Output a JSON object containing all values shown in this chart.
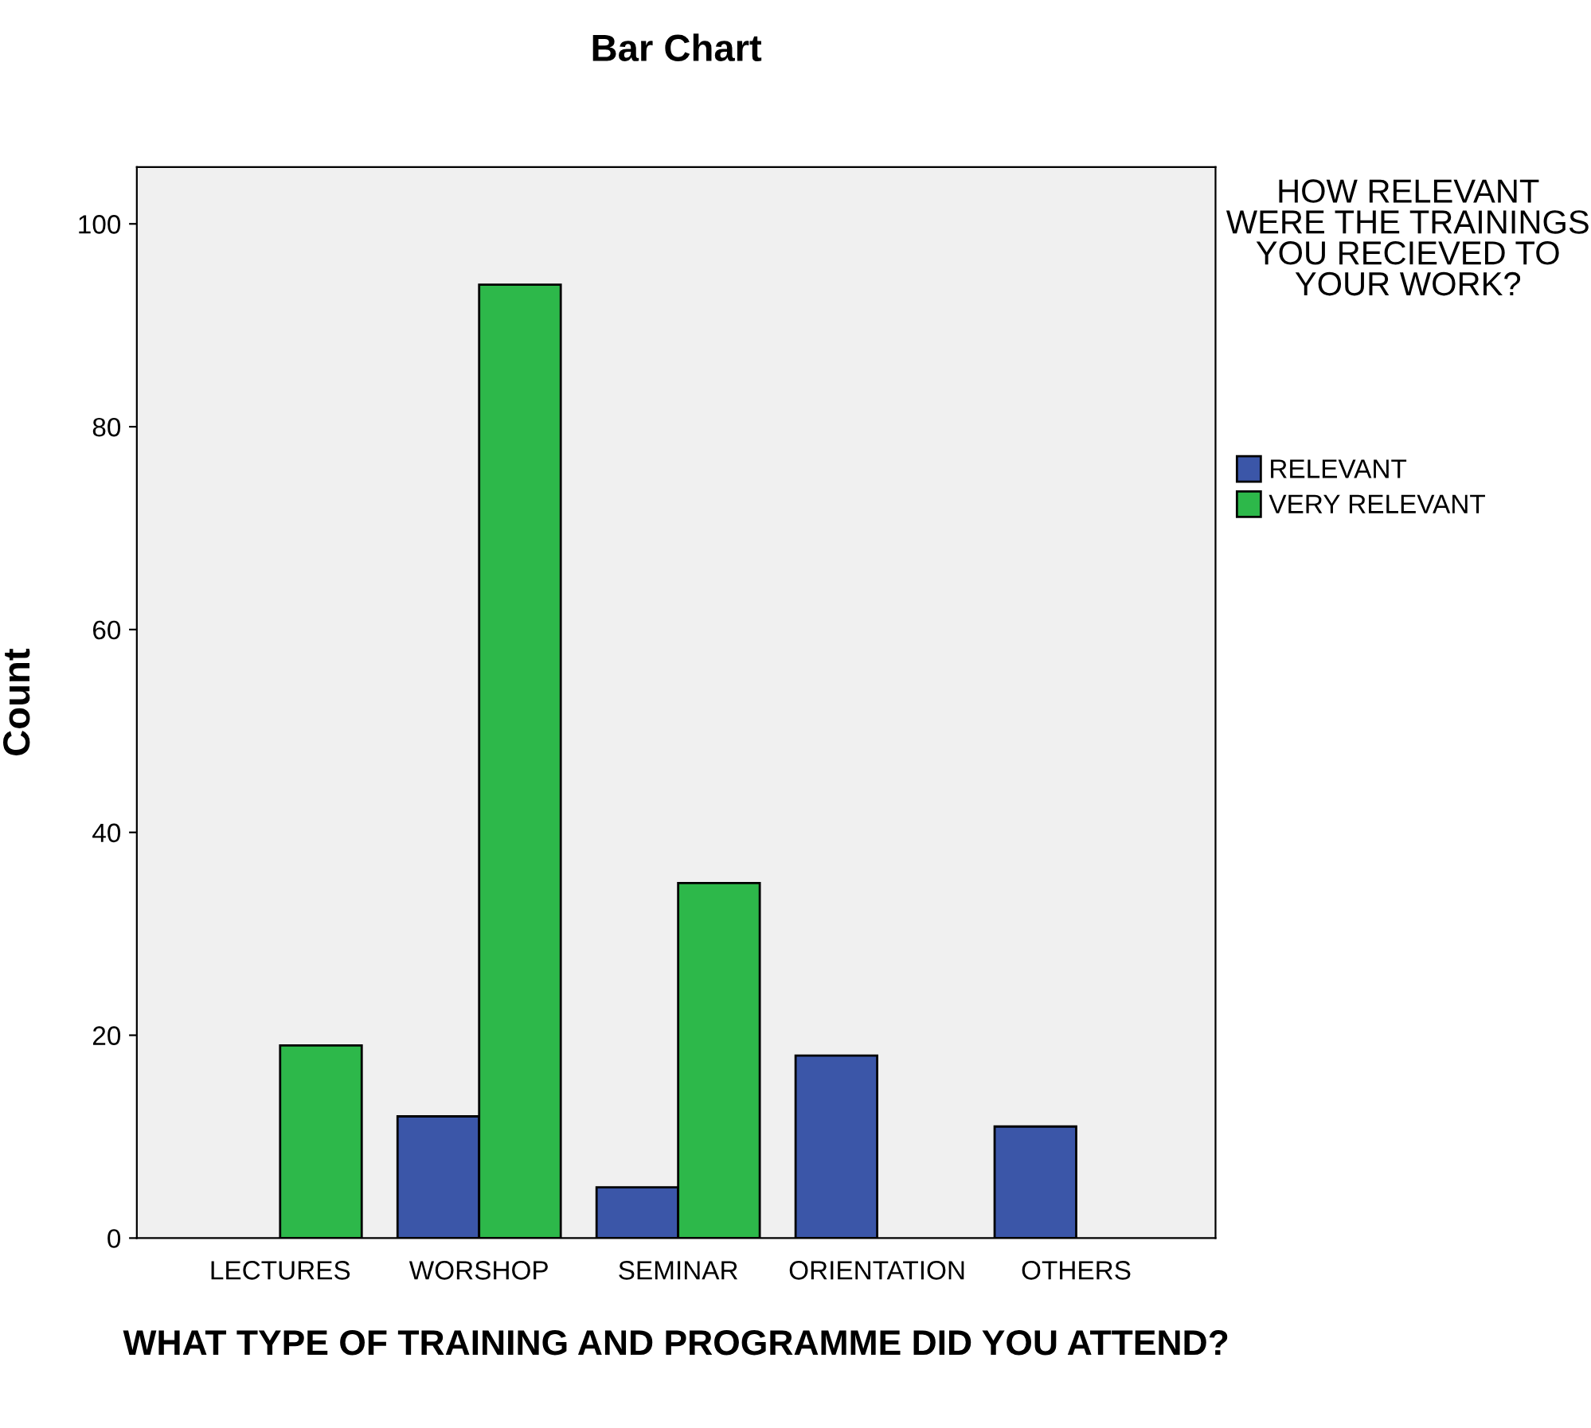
{
  "chart_data": {
    "type": "bar",
    "title": "Bar Chart",
    "xlabel": "WHAT TYPE OF TRAINING AND PROGRAMME DID YOU ATTEND?",
    "ylabel": "Count",
    "legend_title": "HOW RELEVANT WERE THE TRAININGS YOU RECIEVED TO YOUR WORK?",
    "categories": [
      "LECTURES",
      "WORSHOP",
      "SEMINAR",
      "ORIENTATION",
      "OTHERS"
    ],
    "series": [
      {
        "name": "RELEVANT",
        "color": "#3b56a8",
        "values": [
          null,
          12,
          5,
          18,
          11
        ]
      },
      {
        "name": "VERY RELEVANT",
        "color": "#2db84a",
        "values": [
          19,
          94,
          35,
          null,
          null
        ]
      }
    ],
    "ylim": [
      0,
      105.6
    ],
    "yticks": [
      0,
      20,
      40,
      60,
      80,
      100
    ],
    "grid": false,
    "legend": "right"
  }
}
